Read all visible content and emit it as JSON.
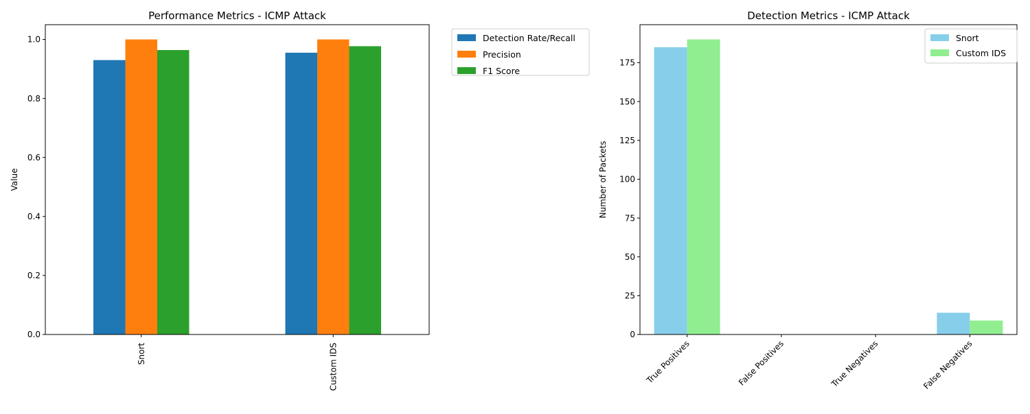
{
  "chart_data": [
    {
      "type": "bar",
      "title": "Performance Metrics - ICMP Attack",
      "xlabel": "",
      "ylabel": "Value",
      "ylim": [
        0,
        1.05
      ],
      "yticks": [
        "0.0",
        "0.2",
        "0.4",
        "0.6",
        "0.8",
        "1.0"
      ],
      "categories": [
        "Snort",
        "Custom IDS"
      ],
      "series": [
        {
          "name": "Detection Rate/Recall",
          "color": "#1f77b4",
          "values": [
            0.93,
            0.955
          ]
        },
        {
          "name": "Precision",
          "color": "#ff7f0e",
          "values": [
            1.0,
            1.0
          ]
        },
        {
          "name": "F1 Score",
          "color": "#2ca02c",
          "values": [
            0.964,
            0.977
          ]
        }
      ],
      "legend": "outside-top-right",
      "grid": false
    },
    {
      "type": "bar",
      "title": "Detection Metrics - ICMP Attack",
      "xlabel": "",
      "ylabel": "Number of Packets",
      "ylim": [
        0,
        199.5
      ],
      "yticks": [
        "0",
        "25",
        "50",
        "75",
        "100",
        "125",
        "150",
        "175"
      ],
      "categories": [
        "True Positives",
        "False Positives",
        "True Negatives",
        "False Negatives"
      ],
      "series": [
        {
          "name": "Snort",
          "color": "#87ceeb",
          "values": [
            185,
            0,
            0,
            14
          ]
        },
        {
          "name": "Custom IDS",
          "color": "#90ee90",
          "values": [
            190,
            0,
            0,
            9
          ]
        }
      ],
      "legend": "top-right",
      "grid": false
    }
  ]
}
